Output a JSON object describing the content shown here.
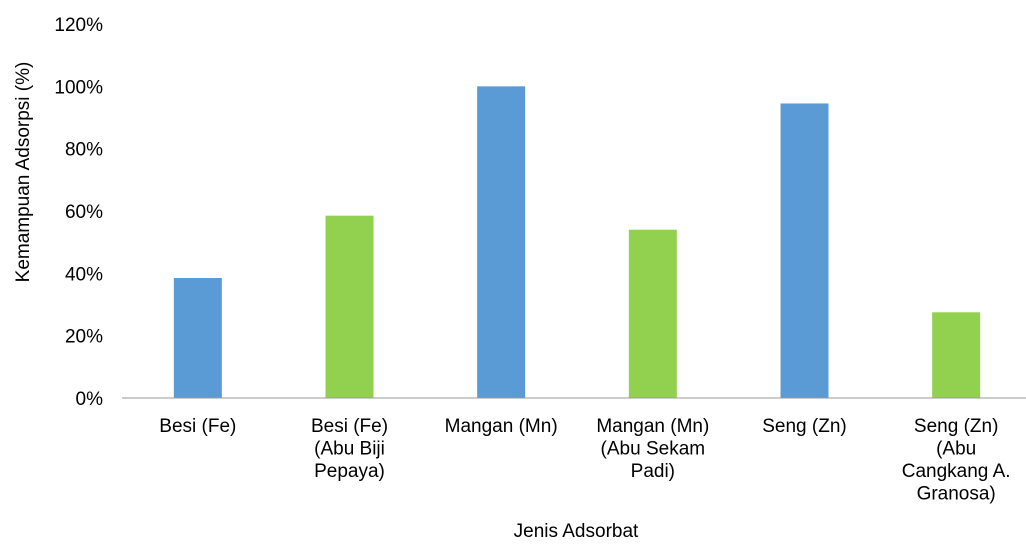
{
  "chart_data": {
    "type": "bar",
    "title": "",
    "xlabel": "Jenis Adsorbat",
    "ylabel": "Kemampuan Adsorpsi (%)",
    "ylim": [
      0,
      120
    ],
    "yticks": [
      "0%",
      "20%",
      "40%",
      "60%",
      "80%",
      "100%",
      "120%"
    ],
    "grid": false,
    "legend": "none",
    "categories": [
      [
        "Besi (Fe)"
      ],
      [
        "Besi (Fe)",
        "(Abu Biji",
        "Pepaya)"
      ],
      [
        "Mangan (Mn)"
      ],
      [
        "Mangan (Mn)",
        "(Abu Sekam",
        "Padi)"
      ],
      [
        "Seng (Zn)"
      ],
      [
        "Seng (Zn)",
        "(Abu",
        "Cangkang A.",
        "Granosa)"
      ]
    ],
    "values": [
      38.5,
      58.5,
      100,
      54,
      94.5,
      27.5
    ],
    "colors": [
      "#5B9BD5",
      "#92D050",
      "#5B9BD5",
      "#92D050",
      "#5B9BD5",
      "#92D050"
    ]
  }
}
